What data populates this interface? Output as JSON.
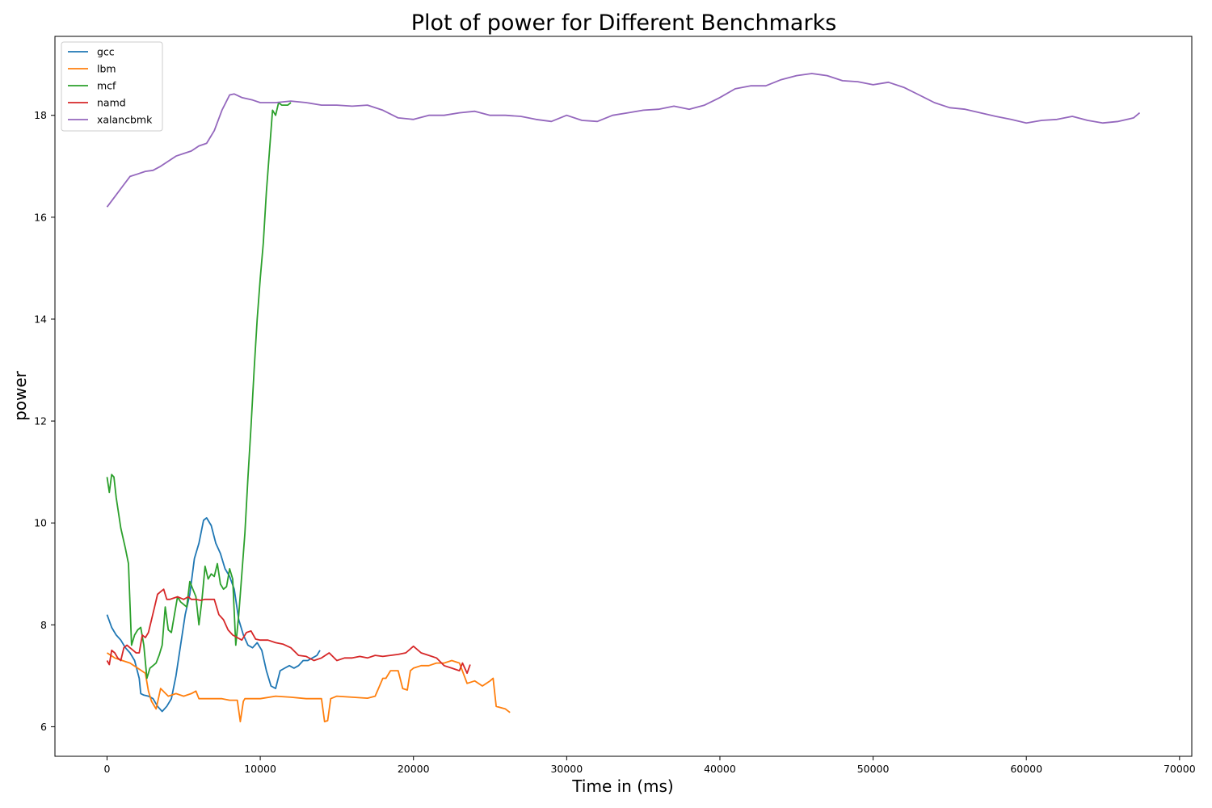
{
  "chart_data": {
    "type": "line",
    "title": "Plot of power for Different Benchmarks",
    "xlabel": "Time in (ms)",
    "ylabel": "power",
    "xlim": [
      -3400,
      70800
    ],
    "ylim": [
      5.42,
      19.55
    ],
    "xticks": [
      0,
      10000,
      20000,
      30000,
      40000,
      50000,
      60000,
      70000
    ],
    "yticks": [
      6,
      8,
      10,
      12,
      14,
      16,
      18
    ],
    "grid": false,
    "legend_position": "top-left",
    "series": [
      {
        "name": "gcc",
        "color": "#1f77b4",
        "x": [
          0,
          300,
          600,
          900,
          1200,
          1500,
          1800,
          2100,
          2200,
          2400,
          2700,
          3000,
          3300,
          3600,
          3900,
          4200,
          4500,
          4800,
          5100,
          5400,
          5700,
          6000,
          6300,
          6500,
          6800,
          7100,
          7400,
          7700,
          8000,
          8300,
          8600,
          8900,
          9200,
          9500,
          9800,
          10100,
          10400,
          10700,
          11000,
          11300,
          11600,
          11900,
          12200,
          12500,
          12800,
          13100,
          13400,
          13700,
          13900
        ],
        "y": [
          8.2,
          7.95,
          7.8,
          7.7,
          7.55,
          7.45,
          7.3,
          6.95,
          6.65,
          6.62,
          6.6,
          6.55,
          6.4,
          6.3,
          6.4,
          6.55,
          7.0,
          7.6,
          8.2,
          8.6,
          9.3,
          9.6,
          10.05,
          10.1,
          9.95,
          9.6,
          9.4,
          9.1,
          8.95,
          8.7,
          8.1,
          7.8,
          7.6,
          7.55,
          7.65,
          7.5,
          7.1,
          6.8,
          6.75,
          7.1,
          7.15,
          7.2,
          7.15,
          7.2,
          7.3,
          7.3,
          7.35,
          7.4,
          7.5
        ]
      },
      {
        "name": "lbm",
        "color": "#ff7f0e",
        "x": [
          0,
          500,
          1000,
          1500,
          2000,
          2500,
          2700,
          2900,
          3200,
          3500,
          4000,
          4500,
          5000,
          5500,
          5800,
          6000,
          6500,
          7000,
          7500,
          8000,
          8500,
          8700,
          8900,
          9000,
          9500,
          10000,
          11000,
          12000,
          13000,
          14000,
          14200,
          14400,
          14600,
          15000,
          16000,
          17000,
          17500,
          18000,
          18200,
          18500,
          19000,
          19300,
          19600,
          19800,
          20000,
          20500,
          21000,
          21500,
          22000,
          22500,
          23000,
          23500,
          24000,
          24500,
          25000,
          25200,
          25400,
          26000,
          26300
        ],
        "y": [
          7.45,
          7.35,
          7.3,
          7.25,
          7.15,
          7.05,
          6.7,
          6.5,
          6.35,
          6.75,
          6.6,
          6.65,
          6.6,
          6.65,
          6.7,
          6.55,
          6.55,
          6.55,
          6.55,
          6.52,
          6.52,
          6.1,
          6.5,
          6.55,
          6.55,
          6.55,
          6.6,
          6.58,
          6.55,
          6.55,
          6.1,
          6.12,
          6.55,
          6.6,
          6.58,
          6.56,
          6.6,
          6.95,
          6.95,
          7.1,
          7.1,
          6.75,
          6.72,
          7.1,
          7.15,
          7.2,
          7.2,
          7.25,
          7.25,
          7.3,
          7.25,
          6.85,
          6.9,
          6.8,
          6.9,
          6.95,
          6.4,
          6.35,
          6.28
        ]
      },
      {
        "name": "mcf",
        "color": "#2ca02c",
        "x": [
          0,
          150,
          300,
          450,
          600,
          900,
          1200,
          1400,
          1600,
          1800,
          2000,
          2200,
          2400,
          2600,
          2800,
          3000,
          3200,
          3400,
          3600,
          3800,
          4000,
          4200,
          4400,
          4600,
          4800,
          5000,
          5200,
          5400,
          5600,
          5800,
          6000,
          6200,
          6400,
          6600,
          6800,
          7000,
          7200,
          7400,
          7600,
          7800,
          8000,
          8200,
          8400,
          8600,
          8800,
          9000,
          9200,
          9400,
          9600,
          9800,
          10000,
          10200,
          10400,
          10600,
          10800,
          11000,
          11200,
          11400,
          11600,
          11800,
          12000
        ],
        "y": [
          10.9,
          10.6,
          10.95,
          10.9,
          10.5,
          9.9,
          9.5,
          9.2,
          7.6,
          7.8,
          7.9,
          7.95,
          7.6,
          6.95,
          7.15,
          7.2,
          7.25,
          7.4,
          7.6,
          8.35,
          7.9,
          7.85,
          8.2,
          8.55,
          8.45,
          8.4,
          8.35,
          8.85,
          8.7,
          8.55,
          8.0,
          8.5,
          9.15,
          8.9,
          9.0,
          8.95,
          9.2,
          8.8,
          8.7,
          8.75,
          9.1,
          8.9,
          7.6,
          8.2,
          9.0,
          9.8,
          10.9,
          11.9,
          13.0,
          14.0,
          14.8,
          15.5,
          16.5,
          17.3,
          18.1,
          18.0,
          18.25,
          18.2,
          18.2,
          18.2,
          18.25
        ]
      },
      {
        "name": "namd",
        "color": "#d62728",
        "x": [
          0,
          150,
          300,
          500,
          700,
          900,
          1100,
          1300,
          1500,
          1700,
          1900,
          2100,
          2300,
          2500,
          2700,
          2900,
          3100,
          3300,
          3500,
          3700,
          3900,
          4100,
          4300,
          4600,
          5000,
          5300,
          5500,
          5800,
          6100,
          6400,
          6700,
          7000,
          7300,
          7600,
          7900,
          8200,
          8500,
          8800,
          9100,
          9400,
          9700,
          10000,
          10500,
          11000,
          11500,
          12000,
          12500,
          13000,
          13500,
          14000,
          14500,
          15000,
          15500,
          16000,
          16500,
          17000,
          17500,
          18000,
          18500,
          19000,
          19500,
          20000,
          20500,
          21000,
          21500,
          22000,
          22500,
          23000,
          23200,
          23500,
          23700
        ],
        "y": [
          7.3,
          7.22,
          7.5,
          7.45,
          7.35,
          7.3,
          7.55,
          7.6,
          7.55,
          7.5,
          7.45,
          7.45,
          7.8,
          7.75,
          7.85,
          8.1,
          8.35,
          8.6,
          8.65,
          8.7,
          8.5,
          8.5,
          8.52,
          8.55,
          8.5,
          8.55,
          8.5,
          8.5,
          8.48,
          8.5,
          8.5,
          8.5,
          8.2,
          8.1,
          7.9,
          7.8,
          7.75,
          7.7,
          7.85,
          7.88,
          7.72,
          7.7,
          7.7,
          7.65,
          7.62,
          7.55,
          7.4,
          7.38,
          7.3,
          7.35,
          7.45,
          7.3,
          7.35,
          7.35,
          7.38,
          7.35,
          7.4,
          7.38,
          7.4,
          7.42,
          7.45,
          7.58,
          7.45,
          7.4,
          7.35,
          7.2,
          7.15,
          7.1,
          7.25,
          7.05,
          7.22
        ]
      },
      {
        "name": "xalancbmk",
        "color": "#9467bd",
        "x": [
          0,
          500,
          1000,
          1500,
          2000,
          2500,
          3000,
          3500,
          4000,
          4500,
          5000,
          5500,
          6000,
          6500,
          7000,
          7500,
          8000,
          8300,
          8800,
          9500,
          10000,
          11000,
          12000,
          13000,
          14000,
          15000,
          16000,
          17000,
          18000,
          19000,
          20000,
          21000,
          22000,
          23000,
          24000,
          25000,
          26000,
          27000,
          28000,
          29000,
          30000,
          31000,
          32000,
          33000,
          34000,
          35000,
          36000,
          37000,
          38000,
          39000,
          40000,
          41000,
          42000,
          43000,
          44000,
          45000,
          46000,
          47000,
          48000,
          49000,
          50000,
          51000,
          52000,
          53000,
          54000,
          55000,
          56000,
          57000,
          58000,
          59000,
          60000,
          61000,
          62000,
          63000,
          64000,
          65000,
          66000,
          67000,
          67400
        ],
        "y": [
          16.2,
          16.4,
          16.6,
          16.8,
          16.85,
          16.9,
          16.92,
          17.0,
          17.1,
          17.2,
          17.25,
          17.3,
          17.4,
          17.45,
          17.7,
          18.1,
          18.4,
          18.42,
          18.35,
          18.3,
          18.25,
          18.25,
          18.28,
          18.25,
          18.2,
          18.2,
          18.18,
          18.2,
          18.1,
          17.95,
          17.92,
          18.0,
          18.0,
          18.05,
          18.08,
          18.0,
          18.0,
          17.98,
          17.92,
          17.88,
          18.0,
          17.9,
          17.88,
          18.0,
          18.05,
          18.1,
          18.12,
          18.18,
          18.12,
          18.2,
          18.35,
          18.52,
          18.58,
          18.58,
          18.7,
          18.78,
          18.82,
          18.78,
          18.68,
          18.66,
          18.6,
          18.65,
          18.55,
          18.4,
          18.25,
          18.15,
          18.12,
          18.05,
          17.98,
          17.92,
          17.85,
          17.9,
          17.92,
          17.98,
          17.9,
          17.85,
          17.88,
          17.95,
          18.05
        ]
      }
    ]
  }
}
